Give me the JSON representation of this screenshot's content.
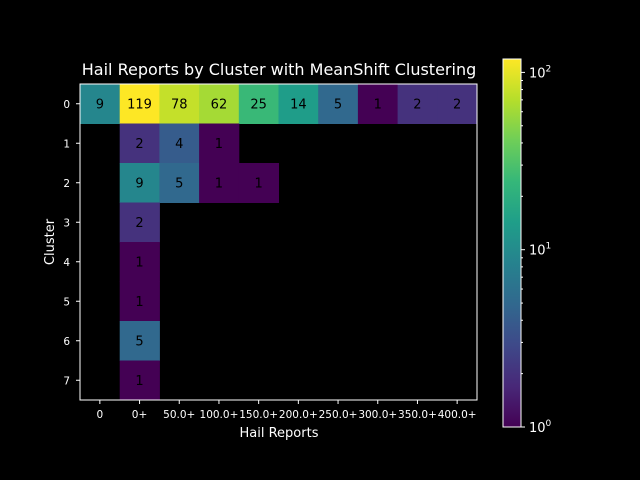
{
  "chart_data": {
    "type": "heatmap",
    "title": "Hail Reports by Cluster with MeanShift Clustering",
    "xlabel": "Hail Reports",
    "ylabel": "Cluster",
    "x_categories": [
      "0",
      "0+",
      "50.0+",
      "100.0+",
      "150.0+",
      "200.0+",
      "250.0+",
      "300.0+",
      "350.0+",
      "400.0+"
    ],
    "y_categories": [
      "0",
      "1",
      "2",
      "3",
      "4",
      "5",
      "6",
      "7"
    ],
    "values": [
      [
        9,
        119,
        78,
        62,
        25,
        14,
        5,
        1,
        2,
        2
      ],
      [
        null,
        2,
        4,
        1,
        null,
        null,
        null,
        null,
        null,
        null
      ],
      [
        null,
        9,
        5,
        1,
        1,
        null,
        null,
        null,
        null,
        null
      ],
      [
        null,
        2,
        null,
        null,
        null,
        null,
        null,
        null,
        null,
        null
      ],
      [
        null,
        1,
        null,
        null,
        null,
        null,
        null,
        null,
        null,
        null
      ],
      [
        null,
        1,
        null,
        null,
        null,
        null,
        null,
        null,
        null,
        null
      ],
      [
        null,
        5,
        null,
        null,
        null,
        null,
        null,
        null,
        null,
        null
      ],
      [
        null,
        1,
        null,
        null,
        null,
        null,
        null,
        null,
        null,
        null
      ]
    ],
    "colorscale": "viridis",
    "color_scale_type": "log",
    "colorbar_range": [
      1,
      119
    ],
    "colorbar_ticks": [
      {
        "base": "10",
        "exp": "0"
      },
      {
        "base": "10",
        "exp": "1"
      },
      {
        "base": "10",
        "exp": "2"
      }
    ],
    "background": "#000000",
    "empty_cell_color": "#000000"
  }
}
